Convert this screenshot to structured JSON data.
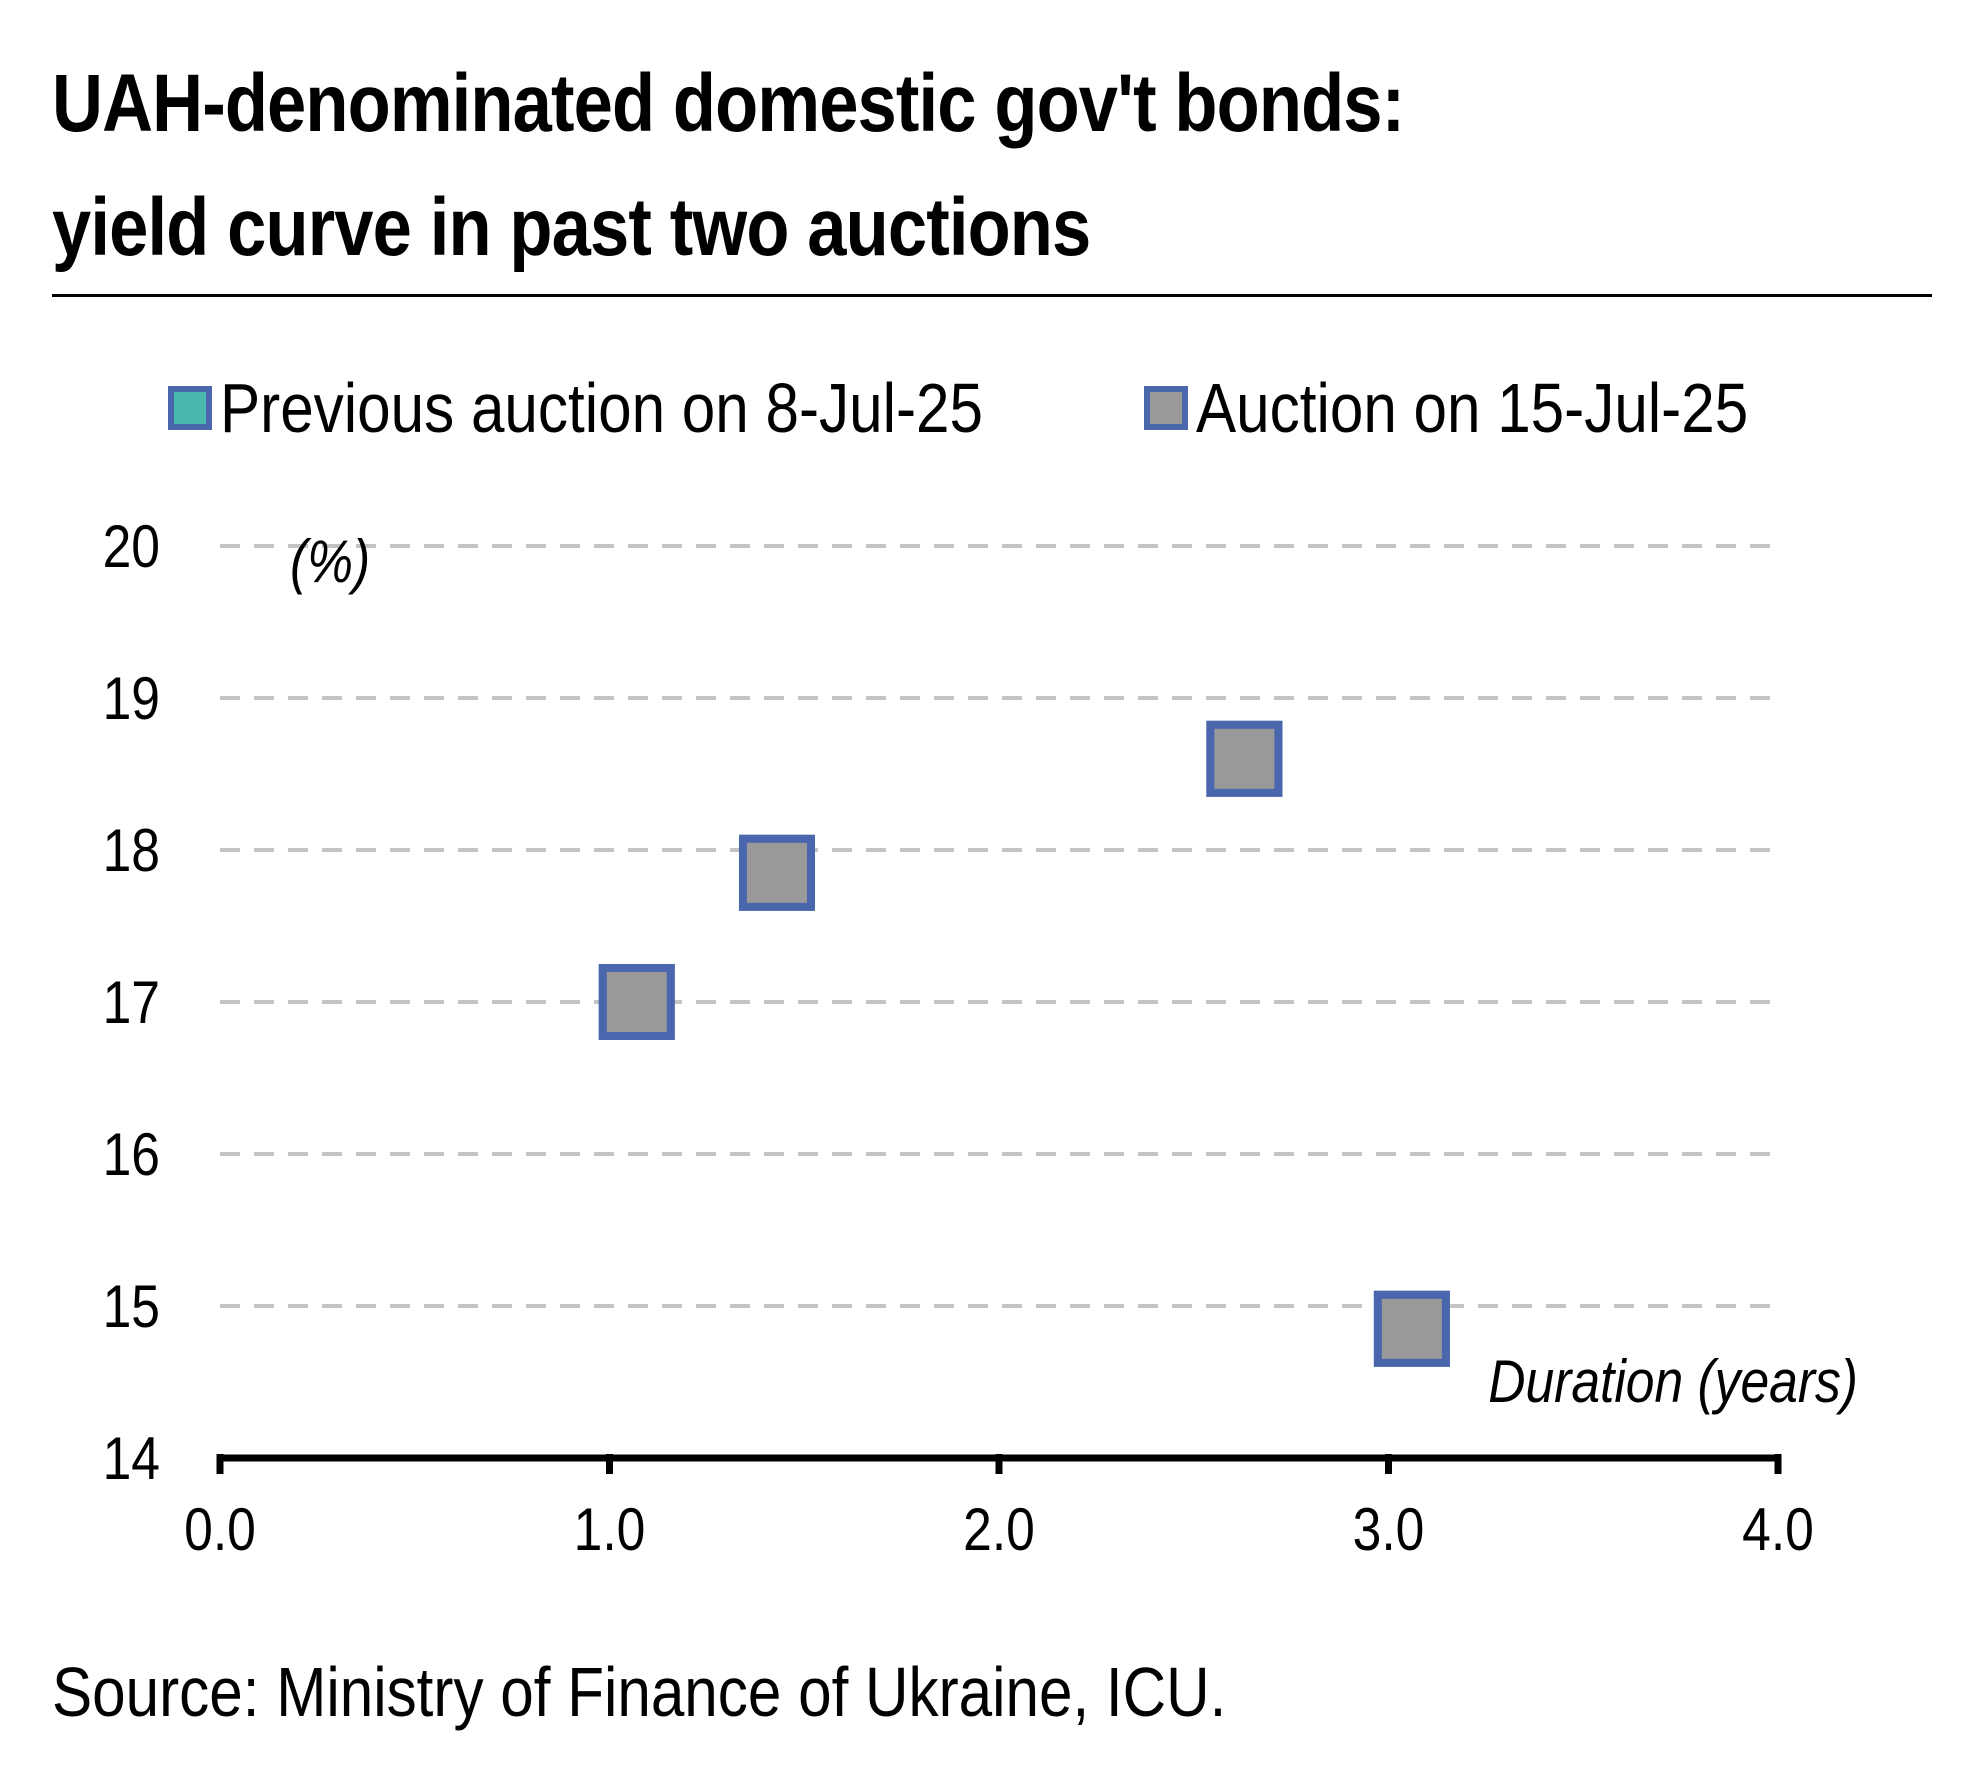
{
  "chart_data": {
    "type": "scatter",
    "title": "UAH-denominated domestic gov't bonds:",
    "subtitle": "yield curve in past two auctions",
    "xlabel": "Duration (years)",
    "ylabel": "(%)",
    "xlim": [
      0,
      4
    ],
    "ylim": [
      14,
      20
    ],
    "x_ticks": [
      0,
      1,
      2,
      3,
      4
    ],
    "x_tick_labels": [
      "0.0",
      "1.0",
      "2.0",
      "3.0",
      "4.0"
    ],
    "y_ticks": [
      14,
      15,
      16,
      17,
      18,
      19,
      20
    ],
    "y_tick_labels": [
      "14",
      "15",
      "16",
      "17",
      "18",
      "19",
      "20"
    ],
    "grid": "horizontal dashed",
    "legend_position": "top",
    "series": [
      {
        "name": "Previous auction on 8-Jul-25",
        "fill": "#4bb8b0",
        "edge": "#4a67ad",
        "points": [
          {
            "x": 1.07,
            "y": 17.0
          },
          {
            "x": 1.43,
            "y": 17.85
          },
          {
            "x": 2.63,
            "y": 18.6
          },
          {
            "x": 3.06,
            "y": 14.85
          }
        ]
      },
      {
        "name": "Auction on 15-Jul-25",
        "fill": "#999999",
        "edge": "#4a67ad",
        "points": [
          {
            "x": 1.07,
            "y": 17.0
          },
          {
            "x": 1.43,
            "y": 17.85
          },
          {
            "x": 2.63,
            "y": 18.6
          },
          {
            "x": 3.06,
            "y": 14.85
          }
        ]
      }
    ],
    "source": "Source: Ministry of Finance of Ukraine, ICU."
  }
}
